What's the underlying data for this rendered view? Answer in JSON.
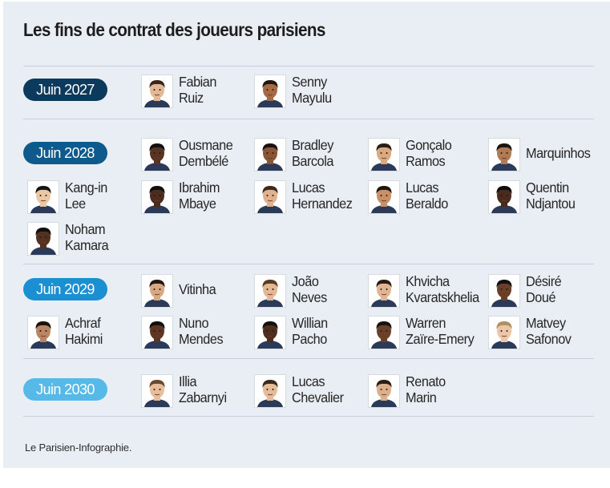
{
  "title": "Les fins de contrat des joueurs parisiens",
  "source": "Le Parisien-Infographie.",
  "groups": [
    {
      "year": "Juin 2027",
      "color": "#0b3a5c",
      "players": [
        {
          "first": "Fabian",
          "last": "Ruiz",
          "skin": "#e2b896",
          "hair": "#3a2618"
        },
        {
          "first": "Senny",
          "last": "Mayulu",
          "skin": "#a66a45",
          "hair": "#231510"
        }
      ]
    },
    {
      "year": "Juin 2028",
      "color": "#0e5a8c",
      "players": [
        {
          "first": "Ousmane",
          "last": "Dembélé",
          "skin": "#5a3423",
          "hair": "#111111"
        },
        {
          "first": "Bradley",
          "last": "Barcola",
          "skin": "#8a5638",
          "hair": "#1a110c"
        },
        {
          "first": "Gonçalo",
          "last": "Ramos",
          "skin": "#d9a982",
          "hair": "#2a1d14"
        },
        {
          "first": "Marquinhos",
          "last": "",
          "skin": "#b07a55",
          "hair": "#1b130e"
        },
        {
          "first": "Kang-in",
          "last": "Lee",
          "skin": "#ecc7a4",
          "hair": "#141414"
        },
        {
          "first": "Ibrahim",
          "last": "Mbaye",
          "skin": "#4c2c1e",
          "hair": "#0f0f0f"
        },
        {
          "first": "Lucas",
          "last": "Hernandez",
          "skin": "#e0b18c",
          "hair": "#3b2a1c"
        },
        {
          "first": "Lucas",
          "last": "Beraldo",
          "skin": "#c98f66",
          "hair": "#1e1510"
        },
        {
          "first": "Quentin",
          "last": "Ndjantou",
          "skin": "#4a2a1c",
          "hair": "#0d0d0d"
        },
        {
          "first": "Noham",
          "last": "Kamara",
          "skin": "#55321f",
          "hair": "#101010"
        }
      ]
    },
    {
      "year": "Juin 2029",
      "color": "#1a8fd1",
      "players": [
        {
          "first": "Vitinha",
          "last": "",
          "skin": "#d8a882",
          "hair": "#241811"
        },
        {
          "first": "João",
          "last": "Neves",
          "skin": "#e3b893",
          "hair": "#5a3a22"
        },
        {
          "first": "Khvicha",
          "last": "Kvaratskhelia",
          "skin": "#e1b593",
          "hair": "#2b1d14"
        },
        {
          "first": "Désiré",
          "last": "Doué",
          "skin": "#6a3e27",
          "hair": "#121212"
        },
        {
          "first": "Achraf",
          "last": "Hakimi",
          "skin": "#b98563",
          "hair": "#1a120d"
        },
        {
          "first": "Nuno",
          "last": "Mendes",
          "skin": "#5c3523",
          "hair": "#101010"
        },
        {
          "first": "Willian",
          "last": "Pacho",
          "skin": "#4e2d1d",
          "hair": "#111111"
        },
        {
          "first": "Warren",
          "last": "Zaïre-Emery",
          "skin": "#6b3f28",
          "hair": "#151515"
        },
        {
          "first": "Matvey",
          "last": "Safonov",
          "skin": "#ecc6a6",
          "hair": "#b08f62"
        }
      ]
    },
    {
      "year": "Juin 2030",
      "color": "#57b9e8",
      "players": [
        {
          "first": "Illia",
          "last": "Zabarnyi",
          "skin": "#e7bd9b",
          "hair": "#6a4a2c"
        },
        {
          "first": "Lucas",
          "last": "Chevalier",
          "skin": "#e6bc98",
          "hair": "#3a281a"
        },
        {
          "first": "Renato",
          "last": "Marin",
          "skin": "#ddb08c",
          "hair": "#2c1e15"
        }
      ]
    }
  ]
}
